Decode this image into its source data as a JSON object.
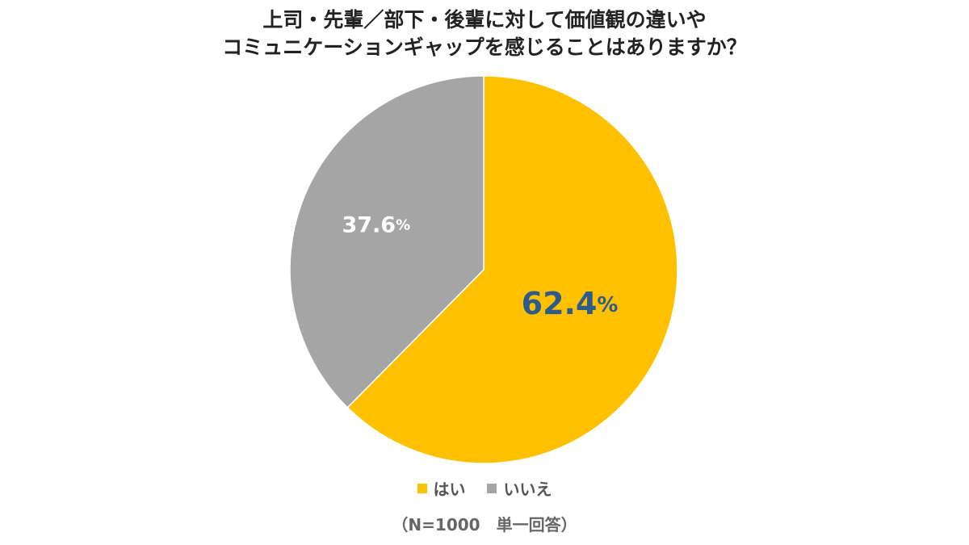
{
  "chart_data": {
    "type": "pie",
    "title_lines": [
      "上司・先輩／部下・後輩に対して価値観の違いや",
      "コミュニケーションギャップを感じることはありますか？"
    ],
    "slices": [
      {
        "name": "はい",
        "value": 62.4,
        "value_label": "62.4",
        "unit": "%",
        "color": "#FFC000",
        "label_color": "#2E5C8A"
      },
      {
        "name": "いいえ",
        "value": 37.6,
        "value_label": "37.6",
        "unit": "%",
        "color": "#A5A5A5",
        "label_color": "#FFFFFF"
      }
    ],
    "start_angle": "12 o'clock",
    "direction": "clockwise",
    "legend_position": "bottom",
    "note": "（N=1000　単一回答）"
  }
}
